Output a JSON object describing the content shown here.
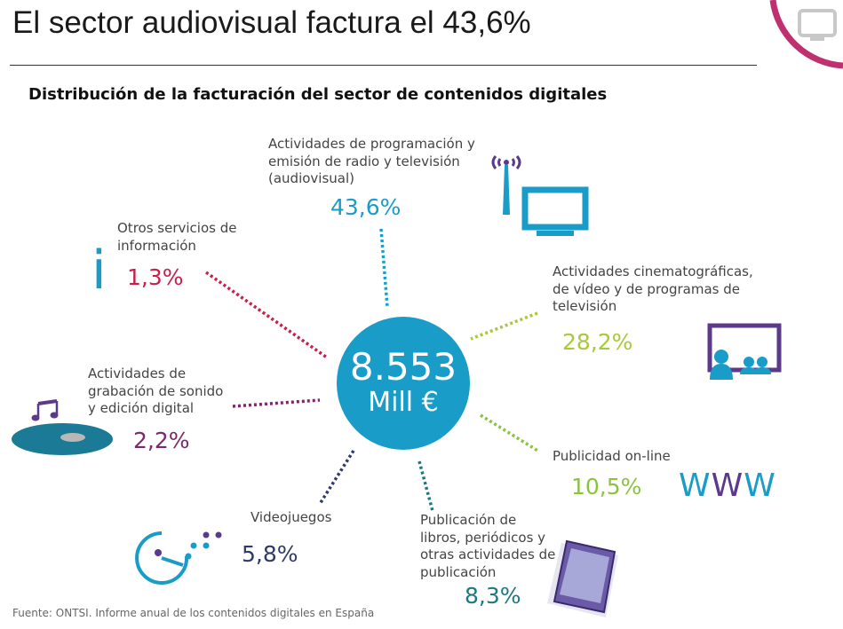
{
  "title": "El sector audiovisual factura el 43,6%",
  "subtitle": "Distribución de la facturación del sector de contenidos digitales",
  "center": {
    "value": "8.553",
    "unit": "Mill €"
  },
  "segments": [
    {
      "label": "Actividades de programación y\nemisión de radio y televisión\n(audiovisual)",
      "share": "43,6%",
      "color": "#1a9cc8"
    },
    {
      "label": "Actividades cinematográficas,\nde vídeo y de programas de\ntelevisión",
      "share": "28,2%",
      "color": "#a8c93a"
    },
    {
      "label": "Publicidad on-line",
      "share": "10,5%",
      "color": "#8ac43f"
    },
    {
      "label": "Publicación de\nlibros, periódicos y\notras actividades de\npublicación",
      "share": "8,3%",
      "color": "#1b7a80"
    },
    {
      "label": "Videojuegos",
      "share": "5,8%",
      "color": "#2f3a6b"
    },
    {
      "label": "Actividades de\ngrabación de sonido\ny edición digital",
      "share": "2,2%",
      "color": "#7a2a6a"
    },
    {
      "label": "Otros servicios de\ninformación",
      "share": "1,3%",
      "color": "#c8204a"
    }
  ],
  "www_text": "WWW",
  "info_icon_glyph": "i",
  "source": "Fuente: ONTSI. Informe anual de los contenidos digitales en España",
  "colors": {
    "accent": "#1a9cc8",
    "corner": "#c03070",
    "purple": "#5b3a8c"
  },
  "icons": [
    "tv-broadcast-icon",
    "cinema-icon",
    "www-icon",
    "ebook-icon",
    "videogame-icon",
    "music-disc-icon",
    "info-icon",
    "corner-tv-icon"
  ]
}
